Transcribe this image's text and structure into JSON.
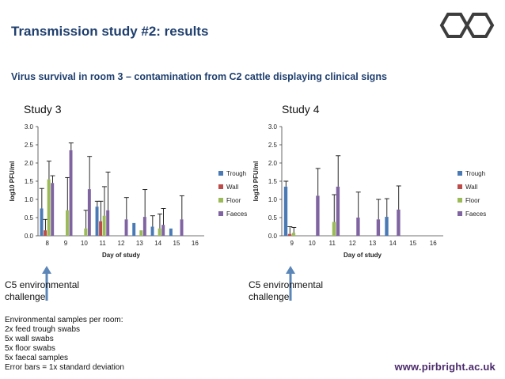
{
  "header": {
    "title": "Transmission study #2: results",
    "subtitle": "Virus survival in room 3 – contamination from C2 cattle displaying clinical signs"
  },
  "colors": {
    "title": "#1f3f6e",
    "trough": "#4a7ab5",
    "wall": "#be4b48",
    "floor": "#9bbb59",
    "faeces": "#8064a2",
    "arrow": "#5b86b8",
    "hex_logo": "#3d3d3d"
  },
  "chart_data": [
    {
      "type": "bar",
      "title": "Study 3",
      "xlabel": "Day of study",
      "ylabel": "log10 PFU/ml",
      "ylim": [
        0,
        3
      ],
      "yticks": [
        "0.0",
        "0.5",
        "1.0",
        "1.5",
        "2.0",
        "2.5",
        "3.0"
      ],
      "categories": [
        "8",
        "9",
        "10",
        "11",
        "12",
        "13",
        "14",
        "15",
        "16"
      ],
      "series": [
        {
          "name": "Trough",
          "values": [
            0.75,
            0,
            0,
            0.8,
            0,
            0.35,
            0.25,
            0.2,
            0
          ],
          "errors": [
            0.55,
            0,
            0,
            0.15,
            0,
            0,
            0.3,
            0,
            0
          ]
        },
        {
          "name": "Wall",
          "values": [
            0.15,
            0,
            0,
            0.4,
            0,
            0,
            0,
            0,
            0
          ],
          "errors": [
            0.3,
            0,
            0,
            0.55,
            0,
            0,
            0,
            0,
            0
          ]
        },
        {
          "name": "Floor",
          "values": [
            1.55,
            0.7,
            0.2,
            0.55,
            0,
            0.15,
            0.2,
            0,
            0
          ],
          "errors": [
            0.5,
            0.9,
            0.5,
            0.8,
            0,
            0,
            0.4,
            0,
            0
          ]
        },
        {
          "name": "Faeces",
          "values": [
            1.45,
            2.35,
            1.28,
            0.7,
            0.45,
            0.52,
            0.3,
            0.45,
            0
          ],
          "errors": [
            0.2,
            0.2,
            0.9,
            1.05,
            0.6,
            0.75,
            0.45,
            0.65,
            0
          ]
        }
      ],
      "legend": "right"
    },
    {
      "type": "bar",
      "title": "Study 4",
      "xlabel": "Day of study",
      "ylabel": "log10 PFU/ml",
      "ylim": [
        0,
        3
      ],
      "yticks": [
        "0.0",
        "0.5",
        "1.0",
        "1.5",
        "2.0",
        "2.5",
        "3.0"
      ],
      "categories": [
        "9",
        "10",
        "11",
        "12",
        "13",
        "14",
        "15",
        "16"
      ],
      "series": [
        {
          "name": "Trough",
          "values": [
            1.35,
            0,
            0,
            0,
            0,
            0.52,
            0,
            0
          ],
          "errors": [
            0.15,
            0,
            0,
            0,
            0,
            0.5,
            0,
            0
          ]
        },
        {
          "name": "Wall",
          "values": [
            0.05,
            0,
            0,
            0,
            0,
            0,
            0,
            0
          ],
          "errors": [
            0.2,
            0,
            0,
            0,
            0,
            0,
            0,
            0
          ]
        },
        {
          "name": "Floor",
          "values": [
            0.08,
            0,
            0.38,
            0,
            0,
            0,
            0,
            0
          ],
          "errors": [
            0.15,
            0,
            0.75,
            0,
            0,
            0,
            0,
            0
          ]
        },
        {
          "name": "Faeces",
          "values": [
            0,
            1.1,
            1.35,
            0.5,
            0.45,
            0.72,
            0,
            0
          ],
          "errors": [
            0,
            0.75,
            0.85,
            0.7,
            0.55,
            0.65,
            0,
            0
          ]
        }
      ],
      "legend": "right"
    }
  ],
  "annotations": {
    "c5_line1": "C5 environmental",
    "c5_line2": "challenge"
  },
  "notes": [
    "Environmental samples per room:",
    "2x feed trough swabs",
    "5x wall swabs",
    "5x floor swabs",
    "5x faecal samples",
    "Error bars = 1x standard deviation"
  ],
  "footer": {
    "url": "www.pirbright.ac.uk"
  }
}
